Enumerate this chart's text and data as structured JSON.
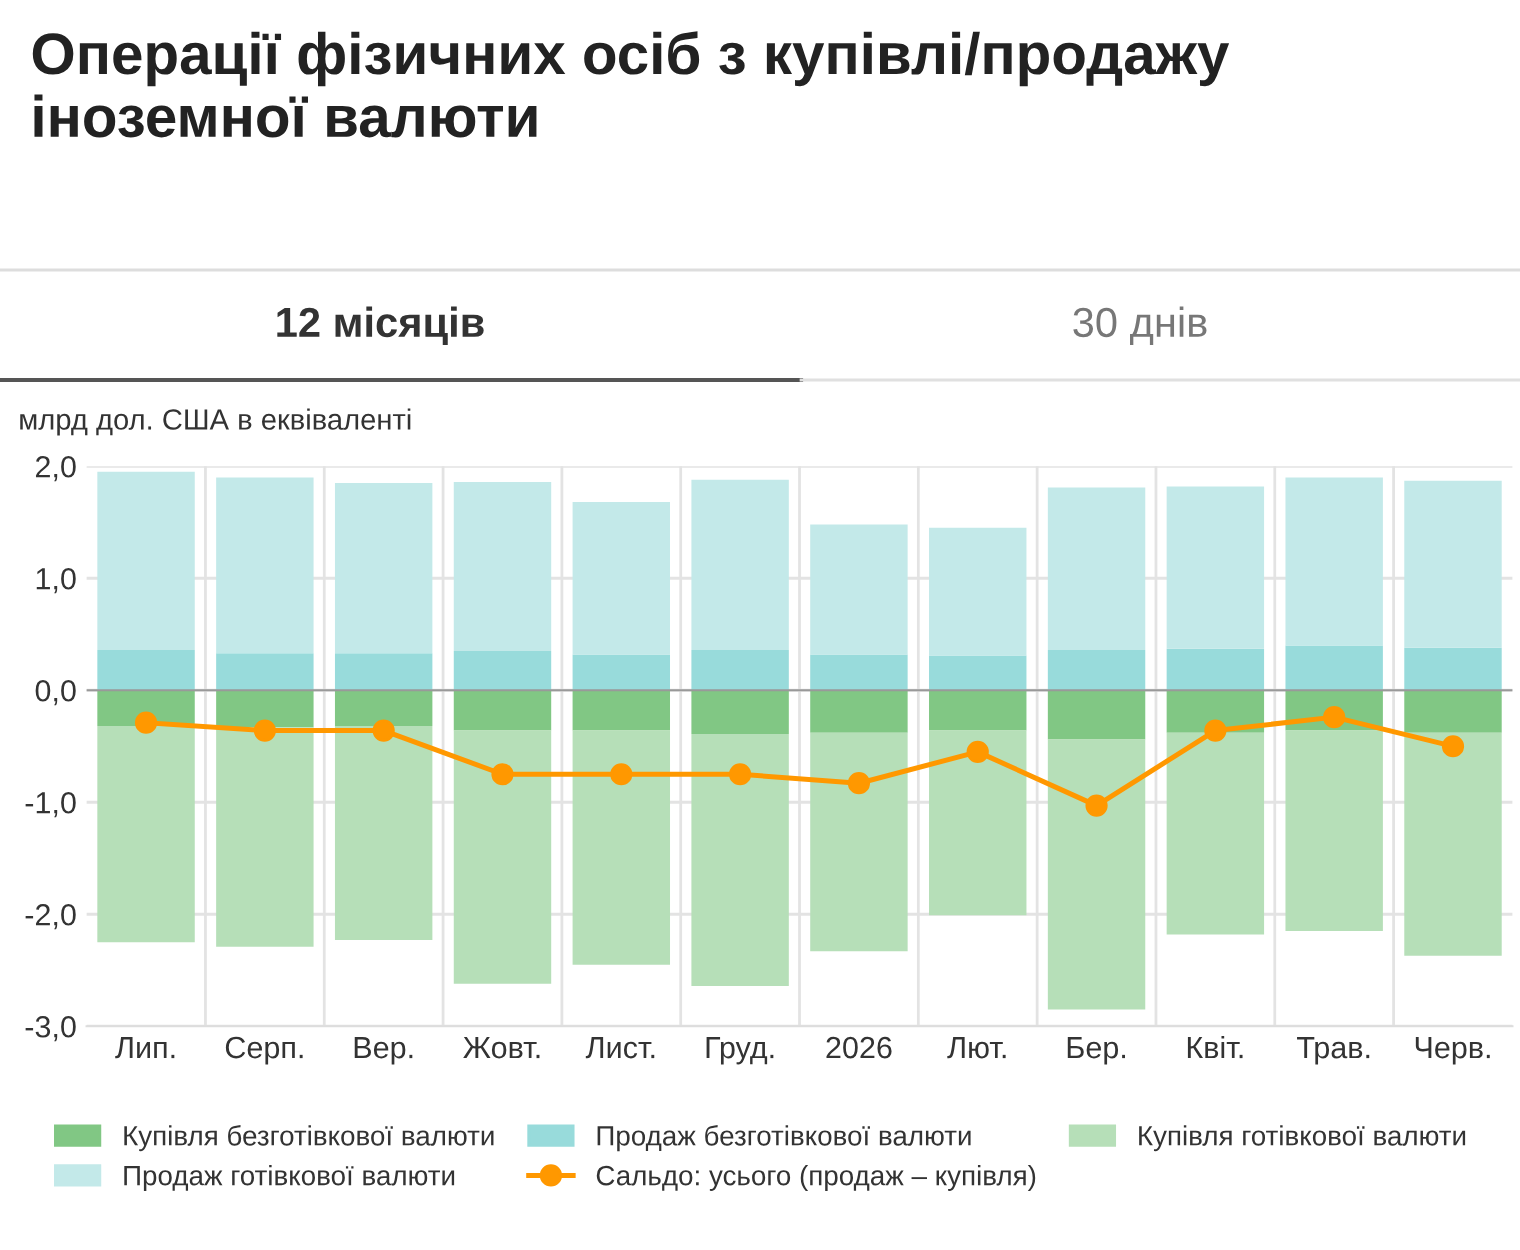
{
  "chart_data": {
    "type": "bar",
    "stacked": true,
    "title": "Операції фізичних осіб з купівлі/продажу іноземної валюти",
    "annotations": [
      "12 місяців",
      "30 днів"
    ],
    "ylabel": "млрд дол. США в еквіваленті",
    "categories": [
      "Лип.",
      "Серп.",
      "Вер.",
      "Жовт.",
      "Лист.",
      "Груд.",
      "2026",
      "Лют.",
      "Бер.",
      "Квіт.",
      "Трав.",
      "Черв."
    ],
    "series": [
      {
        "name": "Купівля безготівкової валюти",
        "color": "#81c784",
        "values": [
          -0.32,
          -0.33,
          -0.32,
          -0.36,
          -0.36,
          -0.39,
          -0.38,
          -0.36,
          -0.44,
          -0.38,
          -0.36,
          -0.38
        ]
      },
      {
        "name": "Продаж безготівкової валюти",
        "color": "#98dbdb",
        "values": [
          0.36,
          0.33,
          0.33,
          0.35,
          0.32,
          0.36,
          0.32,
          0.31,
          0.36,
          0.37,
          0.4,
          0.38
        ]
      },
      {
        "name": "Купівля готівкової валюти",
        "color": "#b6dfb8",
        "values": [
          -1.93,
          -1.96,
          -1.91,
          -2.26,
          -2.09,
          -2.25,
          -1.95,
          -1.65,
          -2.41,
          -1.8,
          -1.79,
          -1.99
        ]
      },
      {
        "name": "Продаж готівкової валюти",
        "color": "#c3e9e9",
        "values": [
          1.59,
          1.57,
          1.52,
          1.51,
          1.36,
          1.52,
          1.16,
          1.14,
          1.45,
          1.45,
          1.5,
          1.49
        ]
      },
      {
        "name": "Сальдо: усього (продаж – купівля)",
        "type": "line",
        "color": "#ff9800",
        "marker": "circle",
        "values": [
          -0.29,
          -0.36,
          -0.36,
          -0.75,
          -0.75,
          -0.75,
          -0.83,
          -0.55,
          -1.03,
          -0.36,
          -0.24,
          -0.5
        ]
      }
    ],
    "ylim": [
      -3,
      2
    ],
    "yticks": [
      {
        "value": -3,
        "label": "-3,0"
      },
      {
        "value": -2,
        "label": "-2,0"
      },
      {
        "value": -1,
        "label": "-1,0"
      },
      {
        "value": 0,
        "label": "0,0"
      },
      {
        "value": 1,
        "label": "1,0"
      },
      {
        "value": 2,
        "label": "2,0"
      }
    ],
    "grid": true,
    "legend": "bottom"
  }
}
